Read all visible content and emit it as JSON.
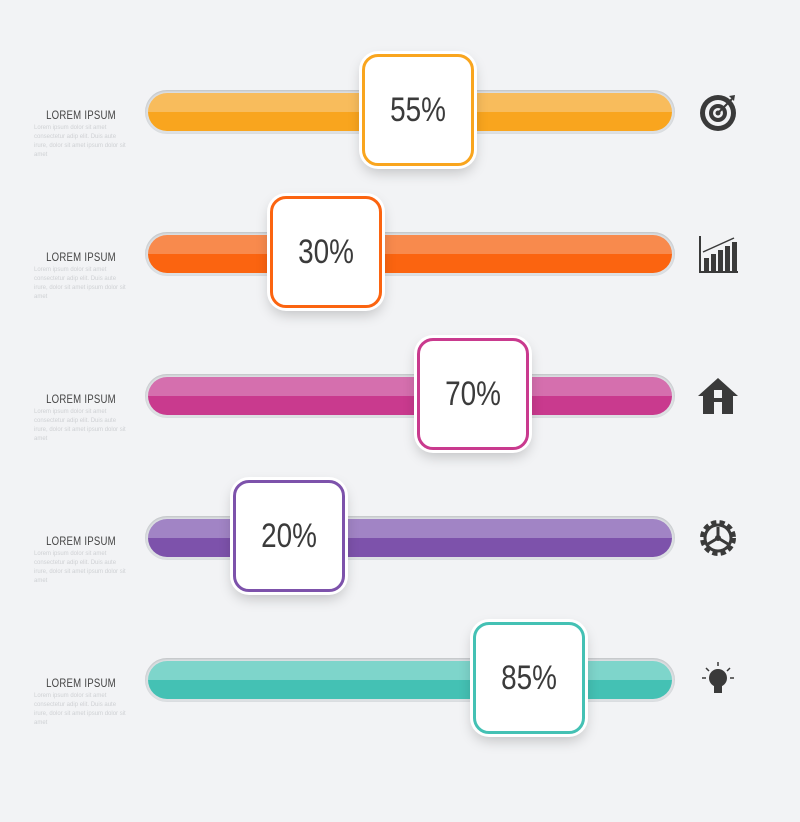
{
  "items": [
    {
      "title": "LOREM IPSUM",
      "text": "Lorem ipsum dolor sit amet consectetur adip elit. Duis aute irure, dolor sit amet ipsum dolor sit amet",
      "value": 55,
      "label": "55%",
      "color": "#f9a51e",
      "light": "#fdb544",
      "icon": "target-icon"
    },
    {
      "title": "LOREM IPSUM",
      "text": "Lorem ipsum dolor sit amet consectetur adip elit. Duis aute irure, dolor sit amet ipsum dolor sit amet",
      "value": 30,
      "label": "30%",
      "color": "#fb6410",
      "light": "#fd7a33",
      "icon": "bar-chart-icon"
    },
    {
      "title": "LOREM IPSUM",
      "text": "Lorem ipsum dolor sit amet consectetur adip elit. Duis aute irure, dolor sit amet ipsum dolor sit amet",
      "value": 70,
      "label": "70%",
      "color": "#c93a8e",
      "light": "#d45aa5",
      "icon": "house-icon"
    },
    {
      "title": "LOREM IPSUM",
      "text": "Lorem ipsum dolor sit amet consectetur adip elit. Duis aute irure, dolor sit amet ipsum dolor sit amet",
      "value": 20,
      "label": "20%",
      "color": "#7d52ab",
      "light": "#9673c0",
      "icon": "gear-icon"
    },
    {
      "title": "LOREM IPSUM",
      "text": "Lorem ipsum dolor sit amet consectetur adip elit. Duis aute irure, dolor sit amet ipsum dolor sit amet",
      "value": 85,
      "label": "85%",
      "color": "#44c1b4",
      "light": "#6dd2c7",
      "icon": "lightbulb-icon"
    }
  ]
}
